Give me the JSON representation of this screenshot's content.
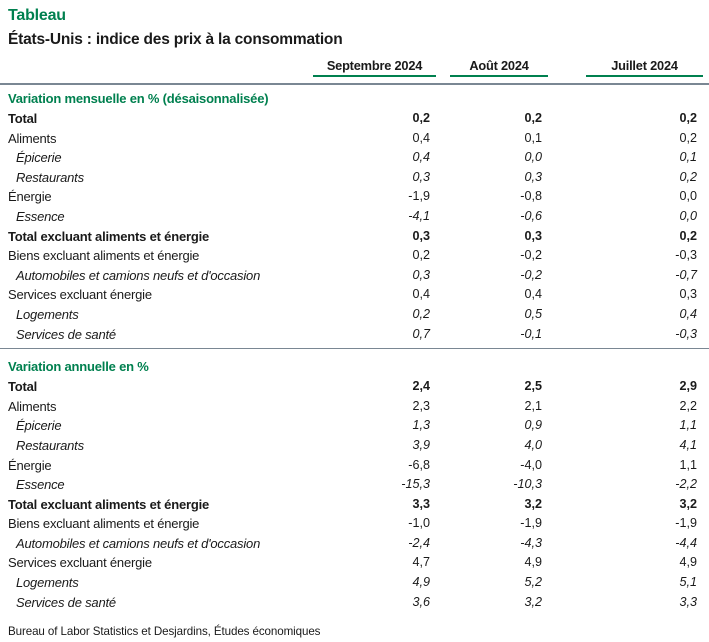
{
  "page": {
    "tag": "Tableau",
    "source": "Bureau of Labor Statistics et Desjardins, Études économiques"
  },
  "colors": {
    "accent_green": "#00804F",
    "rule_gray": "#7A8793"
  },
  "chart_data": {
    "type": "table",
    "title": "États-Unis : indice des prix à la consommation",
    "columns": [
      "Septembre 2024",
      "Août 2024",
      "Juillet 2024"
    ],
    "decimal_separator": ",",
    "sections": [
      {
        "title": "Variation mensuelle en % (désaisonnalisée)",
        "rows": [
          {
            "label": "Total",
            "style": "bold",
            "values": [
              "0,2",
              "0,2",
              "0,2"
            ]
          },
          {
            "label": "Aliments",
            "style": "normal",
            "values": [
              "0,4",
              "0,1",
              "0,2"
            ]
          },
          {
            "label": "Épicerie",
            "style": "italic",
            "values": [
              "0,4",
              "0,0",
              "0,1"
            ]
          },
          {
            "label": "Restaurants",
            "style": "italic",
            "values": [
              "0,3",
              "0,3",
              "0,2"
            ]
          },
          {
            "label": "Énergie",
            "style": "normal",
            "values": [
              "-1,9",
              "-0,8",
              "0,0"
            ]
          },
          {
            "label": "Essence",
            "style": "italic",
            "values": [
              "-4,1",
              "-0,6",
              "0,0"
            ]
          },
          {
            "label": "Total excluant aliments et énergie",
            "style": "bold",
            "values": [
              "0,3",
              "0,3",
              "0,2"
            ]
          },
          {
            "label": "Biens excluant aliments et énergie",
            "style": "normal",
            "values": [
              "0,2",
              "-0,2",
              "-0,3"
            ]
          },
          {
            "label": "Automobiles et camions neufs et d'occasion",
            "style": "italic",
            "values": [
              "0,3",
              "-0,2",
              "-0,7"
            ]
          },
          {
            "label": "Services excluant énergie",
            "style": "normal",
            "values": [
              "0,4",
              "0,4",
              "0,3"
            ]
          },
          {
            "label": "Logements",
            "style": "italic",
            "values": [
              "0,2",
              "0,5",
              "0,4"
            ]
          },
          {
            "label": "Services de santé",
            "style": "italic",
            "values": [
              "0,7",
              "-0,1",
              "-0,3"
            ]
          }
        ]
      },
      {
        "title": "Variation annuelle en %",
        "rows": [
          {
            "label": "Total",
            "style": "bold",
            "values": [
              "2,4",
              "2,5",
              "2,9"
            ]
          },
          {
            "label": "Aliments",
            "style": "normal",
            "values": [
              "2,3",
              "2,1",
              "2,2"
            ]
          },
          {
            "label": "Épicerie",
            "style": "italic",
            "values": [
              "1,3",
              "0,9",
              "1,1"
            ]
          },
          {
            "label": "Restaurants",
            "style": "italic",
            "values": [
              "3,9",
              "4,0",
              "4,1"
            ]
          },
          {
            "label": "Énergie",
            "style": "normal",
            "values": [
              "-6,8",
              "-4,0",
              "1,1"
            ]
          },
          {
            "label": "Essence",
            "style": "italic",
            "values": [
              "-15,3",
              "-10,3",
              "-2,2"
            ]
          },
          {
            "label": "Total excluant aliments et énergie",
            "style": "bold",
            "values": [
              "3,3",
              "3,2",
              "3,2"
            ]
          },
          {
            "label": "Biens excluant aliments et énergie",
            "style": "normal",
            "values": [
              "-1,0",
              "-1,9",
              "-1,9"
            ]
          },
          {
            "label": "Automobiles et camions neufs et d'occasion",
            "style": "italic",
            "values": [
              "-2,4",
              "-4,3",
              "-4,4"
            ]
          },
          {
            "label": "Services excluant énergie",
            "style": "normal",
            "values": [
              "4,7",
              "4,9",
              "4,9"
            ]
          },
          {
            "label": "Logements",
            "style": "italic",
            "values": [
              "4,9",
              "5,2",
              "5,1"
            ]
          },
          {
            "label": "Services de santé",
            "style": "italic",
            "values": [
              "3,6",
              "3,2",
              "3,3"
            ]
          }
        ]
      }
    ]
  }
}
